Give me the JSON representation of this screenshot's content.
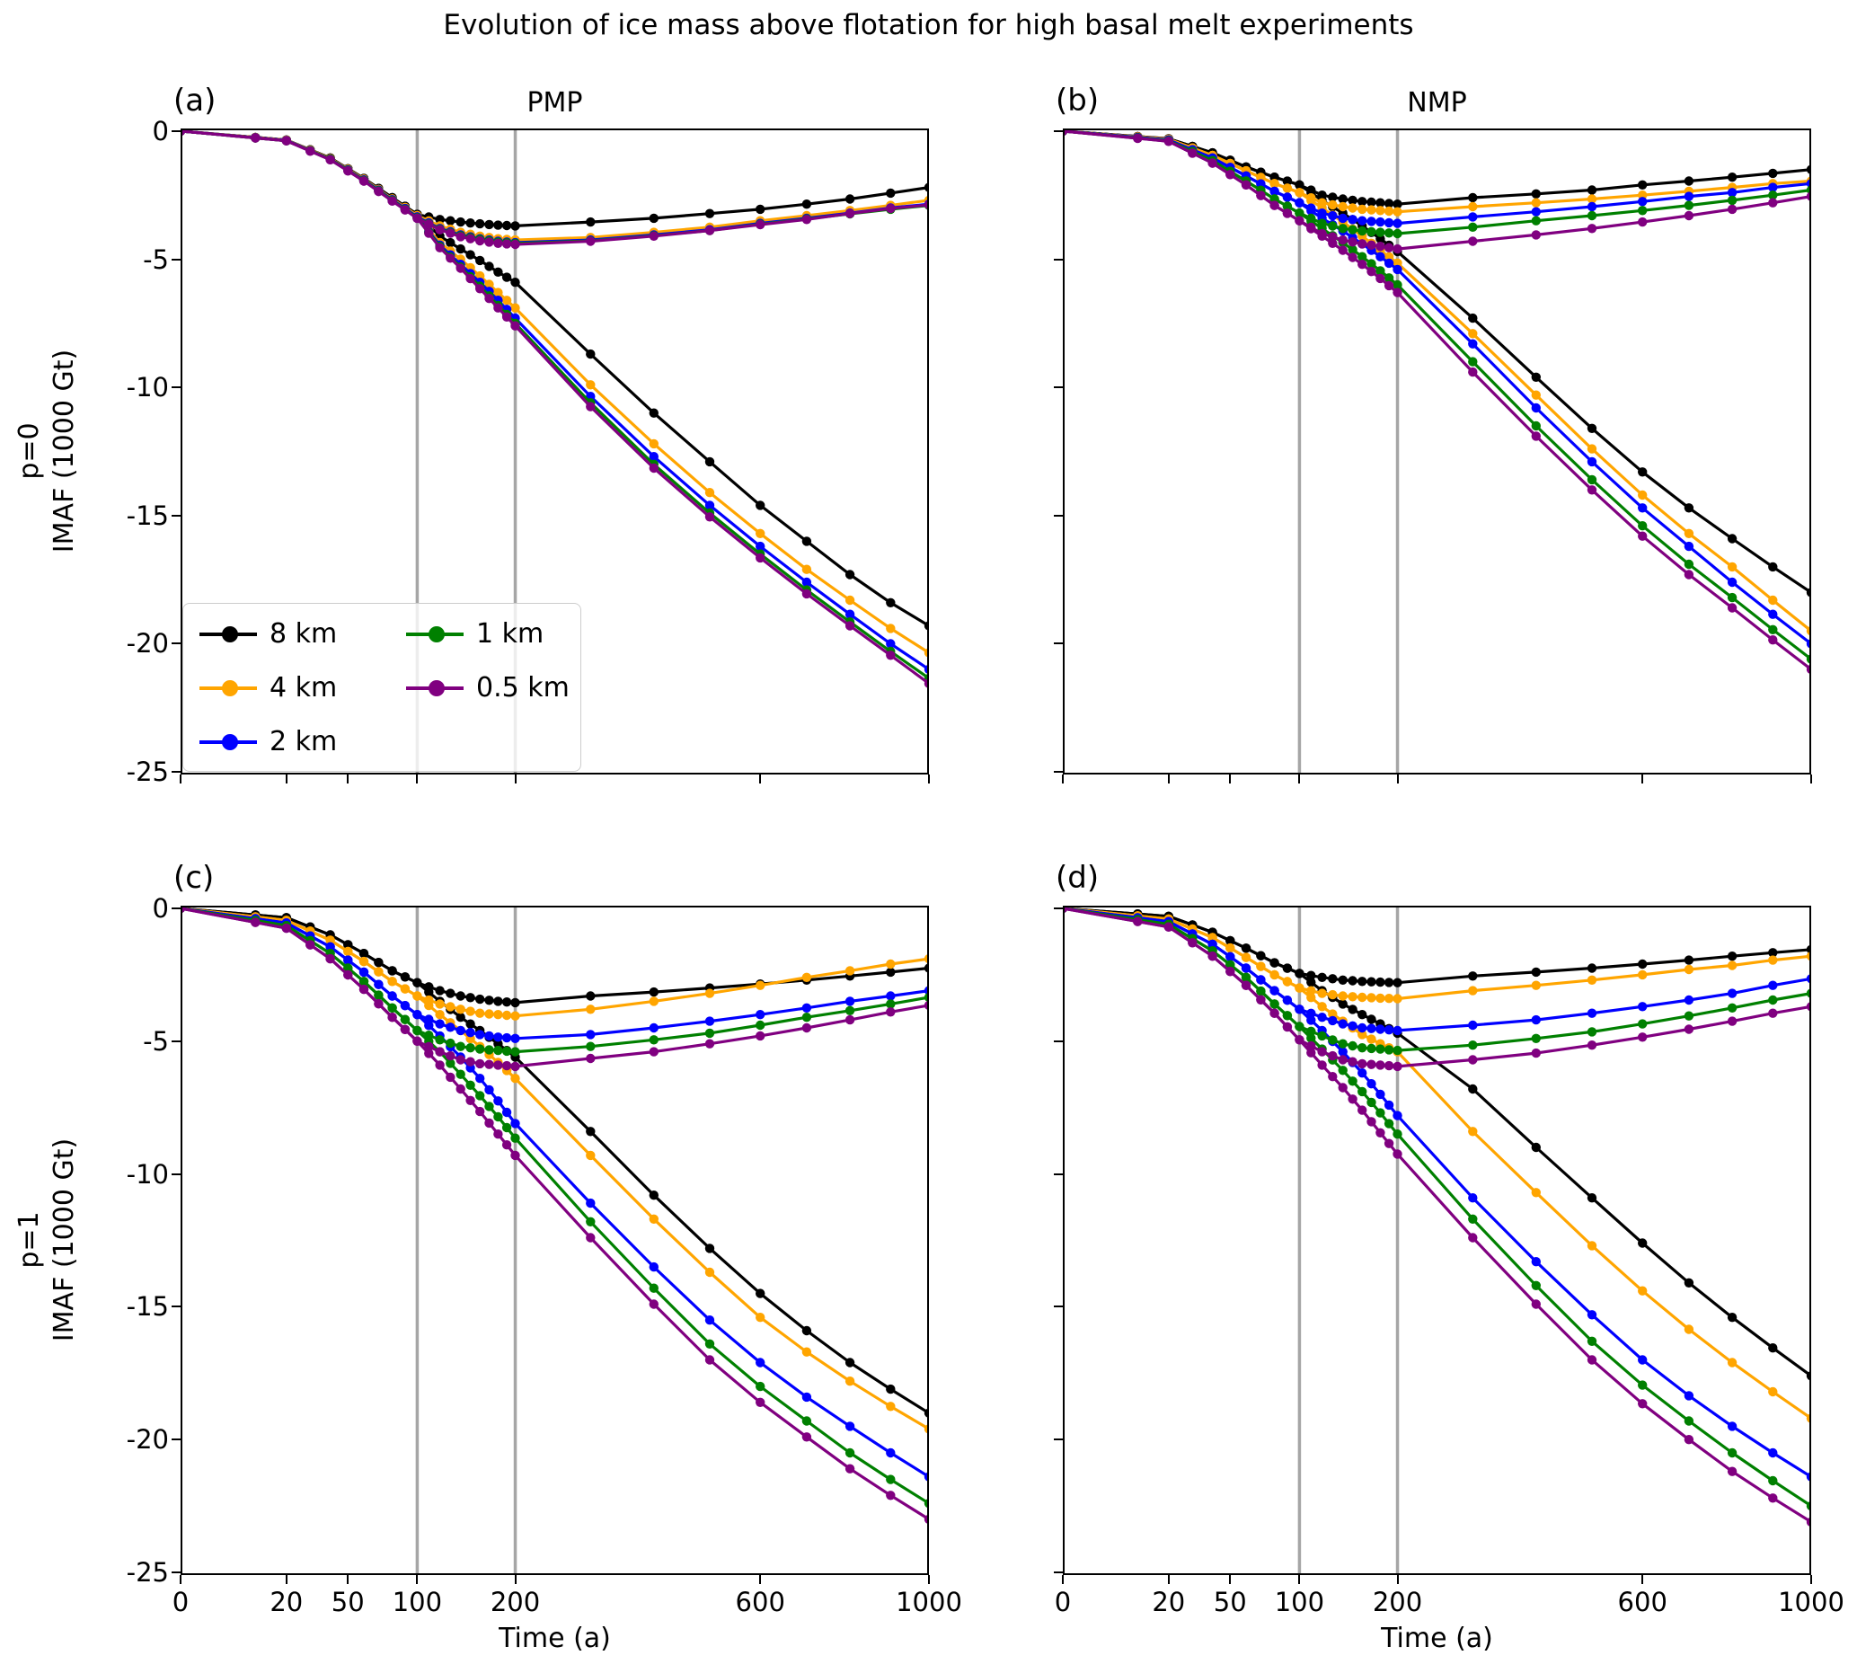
{
  "title": "Evolution of ice mass above flotation for high basal melt experiments",
  "xlabel": "Time (a)",
  "rows": [
    {
      "label": "p=0",
      "ylabel": "IMAF (1000 Gt)"
    },
    {
      "label": "p=1",
      "ylabel": "IMAF (1000 Gt)"
    }
  ],
  "legend": {
    "items": [
      {
        "label": "8 km",
        "color": "#000000"
      },
      {
        "label": "4 km",
        "color": "#FFA500"
      },
      {
        "label": "2 km",
        "color": "#0000FF"
      },
      {
        "label": "1 km",
        "color": "#008000"
      },
      {
        "label": "0.5 km",
        "color": "#800080"
      }
    ]
  },
  "axes": {
    "x_scale": "sqrt",
    "x_ticks": [
      0,
      20,
      50,
      100,
      200,
      600,
      1000
    ],
    "y_ticks": [
      0,
      -5,
      -10,
      -15,
      -20,
      -25
    ],
    "xlim": [
      0,
      1000
    ],
    "ylim": [
      0.1,
      -25.1
    ],
    "vlines": [
      100,
      200
    ],
    "vline_color": "#a6a6a6",
    "anchor_times_early": [
      0,
      20,
      40,
      60,
      80,
      100
    ],
    "anchor_times_branch": [
      120,
      140,
      160,
      180,
      200,
      300,
      400,
      500,
      600,
      700,
      800,
      900,
      1000
    ],
    "marker_times_dense_step": 10,
    "marker_times_sparse_step": 100
  },
  "chart_data": [
    {
      "id": "a",
      "label": "(a)",
      "title": "PMP",
      "row": "p=0",
      "type": "line",
      "series": [
        {
          "name": "8 km",
          "color": "#000000",
          "early": [
            0,
            -0.35,
            -1.05,
            -1.85,
            -2.6,
            -3.25
          ],
          "recover": [
            -3.45,
            -3.55,
            -3.62,
            -3.67,
            -3.7,
            -3.55,
            -3.4,
            -3.22,
            -3.05,
            -2.85,
            -2.65,
            -2.42,
            -2.2
          ],
          "decline": [
            -4.1,
            -4.6,
            -5.05,
            -5.5,
            -5.9,
            -8.7,
            -11.0,
            -12.9,
            -14.6,
            -16.0,
            -17.3,
            -18.4,
            -19.3
          ]
        },
        {
          "name": "4 km",
          "color": "#FFA500",
          "early": [
            0,
            -0.36,
            -1.07,
            -1.88,
            -2.65,
            -3.3
          ],
          "recover": [
            -3.7,
            -3.95,
            -4.1,
            -4.2,
            -4.25,
            -4.15,
            -3.95,
            -3.75,
            -3.5,
            -3.3,
            -3.1,
            -2.9,
            -2.7
          ],
          "decline": [
            -4.35,
            -5.0,
            -5.65,
            -6.3,
            -6.9,
            -9.9,
            -12.2,
            -14.1,
            -15.7,
            -17.1,
            -18.3,
            -19.4,
            -20.35
          ]
        },
        {
          "name": "2 km",
          "color": "#0000FF",
          "early": [
            0,
            -0.37,
            -1.09,
            -1.91,
            -2.68,
            -3.35
          ],
          "recover": [
            -3.8,
            -4.05,
            -4.2,
            -4.3,
            -4.35,
            -4.25,
            -4.05,
            -3.85,
            -3.6,
            -3.4,
            -3.2,
            -3.0,
            -2.85
          ],
          "decline": [
            -4.45,
            -5.2,
            -5.9,
            -6.6,
            -7.3,
            -10.35,
            -12.7,
            -14.6,
            -16.2,
            -17.6,
            -18.85,
            -20.0,
            -21.0
          ]
        },
        {
          "name": "1 km",
          "color": "#008000",
          "early": [
            0,
            -0.38,
            -1.1,
            -1.93,
            -2.7,
            -3.38
          ],
          "recover": [
            -3.83,
            -4.08,
            -4.23,
            -4.33,
            -4.38,
            -4.28,
            -4.08,
            -3.88,
            -3.63,
            -3.43,
            -3.23,
            -3.05,
            -2.9
          ],
          "decline": [
            -4.5,
            -5.3,
            -6.05,
            -6.8,
            -7.5,
            -10.6,
            -13.0,
            -14.9,
            -16.5,
            -17.9,
            -19.15,
            -20.3,
            -21.35
          ]
        },
        {
          "name": "0.5 km",
          "color": "#800080",
          "early": [
            0,
            -0.38,
            -1.12,
            -1.95,
            -2.73,
            -3.4
          ],
          "recover": [
            -3.85,
            -4.12,
            -4.28,
            -4.38,
            -4.42,
            -4.3,
            -4.1,
            -3.88,
            -3.65,
            -3.45,
            -3.22,
            -3.02,
            -2.88
          ],
          "decline": [
            -4.55,
            -5.35,
            -6.15,
            -6.9,
            -7.6,
            -10.75,
            -13.15,
            -15.05,
            -16.65,
            -18.05,
            -19.3,
            -20.45,
            -21.55
          ]
        }
      ]
    },
    {
      "id": "b",
      "label": "(b)",
      "title": "NMP",
      "row": "p=0",
      "type": "line",
      "series": [
        {
          "name": "8 km",
          "color": "#000000",
          "early": [
            0,
            -0.3,
            -0.85,
            -1.4,
            -1.8,
            -2.1
          ],
          "recover": [
            -2.5,
            -2.65,
            -2.75,
            -2.8,
            -2.85,
            -2.6,
            -2.45,
            -2.3,
            -2.1,
            -1.95,
            -1.8,
            -1.65,
            -1.5
          ],
          "decline": [
            -2.7,
            -3.2,
            -3.7,
            -4.2,
            -4.7,
            -7.3,
            -9.6,
            -11.6,
            -13.3,
            -14.7,
            -15.9,
            -17.0,
            -18.0
          ]
        },
        {
          "name": "4 km",
          "color": "#FFA500",
          "early": [
            0,
            -0.32,
            -0.95,
            -1.55,
            -2.05,
            -2.4
          ],
          "recover": [
            -2.8,
            -2.95,
            -3.05,
            -3.1,
            -3.15,
            -2.95,
            -2.8,
            -2.65,
            -2.5,
            -2.35,
            -2.2,
            -2.05,
            -1.95
          ],
          "decline": [
            -3.0,
            -3.55,
            -4.1,
            -4.65,
            -5.15,
            -7.9,
            -10.3,
            -12.4,
            -14.2,
            -15.7,
            -17.0,
            -18.3,
            -19.5
          ]
        },
        {
          "name": "2 km",
          "color": "#0000FF",
          "early": [
            0,
            -0.35,
            -1.05,
            -1.75,
            -2.35,
            -2.8
          ],
          "recover": [
            -3.2,
            -3.4,
            -3.5,
            -3.55,
            -3.6,
            -3.35,
            -3.15,
            -2.95,
            -2.75,
            -2.55,
            -2.4,
            -2.2,
            -2.05
          ],
          "decline": [
            -3.4,
            -3.9,
            -4.4,
            -4.9,
            -5.4,
            -8.3,
            -10.8,
            -12.9,
            -14.7,
            -16.2,
            -17.6,
            -18.85,
            -20.0
          ]
        },
        {
          "name": "1 km",
          "color": "#008000",
          "early": [
            0,
            -0.38,
            -1.15,
            -1.95,
            -2.65,
            -3.2
          ],
          "recover": [
            -3.6,
            -3.8,
            -3.9,
            -3.95,
            -4.0,
            -3.75,
            -3.5,
            -3.3,
            -3.1,
            -2.9,
            -2.7,
            -2.5,
            -2.3
          ],
          "decline": [
            -3.8,
            -4.35,
            -4.9,
            -5.45,
            -6.0,
            -9.0,
            -11.5,
            -13.6,
            -15.4,
            -16.9,
            -18.2,
            -19.45,
            -20.6
          ]
        },
        {
          "name": "0.5 km",
          "color": "#800080",
          "early": [
            0,
            -0.4,
            -1.25,
            -2.1,
            -2.9,
            -3.5
          ],
          "recover": [
            -4.0,
            -4.25,
            -4.4,
            -4.5,
            -4.6,
            -4.3,
            -4.05,
            -3.8,
            -3.55,
            -3.3,
            -3.05,
            -2.8,
            -2.55
          ],
          "decline": [
            -4.1,
            -4.65,
            -5.2,
            -5.75,
            -6.3,
            -9.4,
            -11.9,
            -14.0,
            -15.8,
            -17.3,
            -18.6,
            -19.85,
            -21.0
          ]
        }
      ]
    },
    {
      "id": "c",
      "label": "(c)",
      "title": null,
      "row": "p=1",
      "type": "line",
      "series": [
        {
          "name": "8 km",
          "color": "#000000",
          "early": [
            0,
            -0.35,
            -1.0,
            -1.7,
            -2.35,
            -2.8
          ],
          "recover": [
            -3.1,
            -3.3,
            -3.42,
            -3.5,
            -3.55,
            -3.3,
            -3.15,
            -3.0,
            -2.85,
            -2.7,
            -2.55,
            -2.4,
            -2.25
          ],
          "decline": [
            -3.5,
            -4.1,
            -4.6,
            -5.1,
            -5.6,
            -8.4,
            -10.8,
            -12.8,
            -14.5,
            -15.9,
            -17.1,
            -18.1,
            -19.0
          ]
        },
        {
          "name": "4 km",
          "color": "#FFA500",
          "early": [
            0,
            -0.45,
            -1.2,
            -2.0,
            -2.75,
            -3.3
          ],
          "recover": [
            -3.6,
            -3.8,
            -3.95,
            -4.0,
            -4.05,
            -3.8,
            -3.5,
            -3.2,
            -2.9,
            -2.6,
            -2.35,
            -2.1,
            -1.9
          ],
          "decline": [
            -4.0,
            -4.6,
            -5.2,
            -5.8,
            -6.4,
            -9.3,
            -11.7,
            -13.7,
            -15.4,
            -16.7,
            -17.8,
            -18.75,
            -19.6
          ]
        },
        {
          "name": "2 km",
          "color": "#0000FF",
          "early": [
            0,
            -0.55,
            -1.45,
            -2.4,
            -3.3,
            -4.0
          ],
          "recover": [
            -4.35,
            -4.6,
            -4.75,
            -4.85,
            -4.9,
            -4.75,
            -4.5,
            -4.25,
            -4.0,
            -3.75,
            -3.5,
            -3.3,
            -3.1
          ],
          "decline": [
            -4.8,
            -5.6,
            -6.4,
            -7.25,
            -8.1,
            -11.1,
            -13.5,
            -15.5,
            -17.1,
            -18.4,
            -19.5,
            -20.5,
            -21.4
          ]
        },
        {
          "name": "1 km",
          "color": "#008000",
          "early": [
            0,
            -0.65,
            -1.7,
            -2.75,
            -3.75,
            -4.6
          ],
          "recover": [
            -4.95,
            -5.2,
            -5.3,
            -5.35,
            -5.4,
            -5.2,
            -4.95,
            -4.7,
            -4.4,
            -4.1,
            -3.85,
            -3.6,
            -3.35
          ],
          "decline": [
            -5.4,
            -6.25,
            -7.05,
            -7.85,
            -8.65,
            -11.8,
            -14.3,
            -16.4,
            -18.0,
            -19.3,
            -20.5,
            -21.5,
            -22.4
          ]
        },
        {
          "name": "0.5 km",
          "color": "#800080",
          "early": [
            0,
            -0.75,
            -1.9,
            -3.05,
            -4.1,
            -5.0
          ],
          "recover": [
            -5.4,
            -5.7,
            -5.85,
            -5.9,
            -5.95,
            -5.65,
            -5.4,
            -5.1,
            -4.8,
            -4.5,
            -4.2,
            -3.9,
            -3.65
          ],
          "decline": [
            -5.9,
            -6.8,
            -7.65,
            -8.5,
            -9.3,
            -12.4,
            -14.9,
            -17.0,
            -18.6,
            -19.9,
            -21.1,
            -22.1,
            -23.0
          ]
        }
      ]
    },
    {
      "id": "d",
      "label": "(d)",
      "title": null,
      "row": "p=1",
      "type": "line",
      "series": [
        {
          "name": "8 km",
          "color": "#000000",
          "early": [
            0,
            -0.3,
            -0.9,
            -1.5,
            -2.05,
            -2.45
          ],
          "recover": [
            -2.6,
            -2.7,
            -2.75,
            -2.78,
            -2.8,
            -2.55,
            -2.4,
            -2.25,
            -2.1,
            -1.95,
            -1.8,
            -1.67,
            -1.55
          ],
          "decline": [
            -3.1,
            -3.6,
            -4.0,
            -4.35,
            -4.7,
            -6.8,
            -9.0,
            -10.9,
            -12.6,
            -14.1,
            -15.4,
            -16.55,
            -17.6
          ]
        },
        {
          "name": "4 km",
          "color": "#FFA500",
          "early": [
            0,
            -0.4,
            -1.1,
            -1.85,
            -2.5,
            -3.0
          ],
          "recover": [
            -3.2,
            -3.3,
            -3.35,
            -3.38,
            -3.4,
            -3.1,
            -2.9,
            -2.7,
            -2.5,
            -2.3,
            -2.15,
            -1.95,
            -1.8
          ],
          "decline": [
            -3.7,
            -4.25,
            -4.75,
            -5.1,
            -5.4,
            -8.4,
            -10.7,
            -12.7,
            -14.4,
            -15.85,
            -17.1,
            -18.2,
            -19.2
          ]
        },
        {
          "name": "2 km",
          "color": "#0000FF",
          "early": [
            0,
            -0.5,
            -1.35,
            -2.25,
            -3.1,
            -3.8
          ],
          "recover": [
            -4.1,
            -4.35,
            -4.5,
            -4.55,
            -4.6,
            -4.4,
            -4.2,
            -3.95,
            -3.7,
            -3.45,
            -3.2,
            -2.9,
            -2.65
          ],
          "decline": [
            -4.6,
            -5.4,
            -6.2,
            -7.0,
            -7.8,
            -10.9,
            -13.3,
            -15.3,
            -17.0,
            -18.35,
            -19.5,
            -20.5,
            -21.4
          ]
        },
        {
          "name": "1 km",
          "color": "#008000",
          "early": [
            0,
            -0.6,
            -1.6,
            -2.6,
            -3.6,
            -4.45
          ],
          "recover": [
            -4.8,
            -5.1,
            -5.25,
            -5.3,
            -5.35,
            -5.15,
            -4.9,
            -4.65,
            -4.35,
            -4.05,
            -3.75,
            -3.45,
            -3.2
          ],
          "decline": [
            -5.3,
            -6.1,
            -6.9,
            -7.7,
            -8.5,
            -11.7,
            -14.2,
            -16.3,
            -17.95,
            -19.3,
            -20.5,
            -21.55,
            -22.5
          ]
        },
        {
          "name": "0.5 km",
          "color": "#800080",
          "early": [
            0,
            -0.7,
            -1.8,
            -2.9,
            -3.95,
            -4.95
          ],
          "recover": [
            -5.4,
            -5.7,
            -5.85,
            -5.9,
            -5.95,
            -5.7,
            -5.45,
            -5.15,
            -4.85,
            -4.55,
            -4.25,
            -3.95,
            -3.7
          ],
          "decline": [
            -5.9,
            -6.75,
            -7.6,
            -8.45,
            -9.25,
            -12.4,
            -14.9,
            -17.0,
            -18.65,
            -20.0,
            -21.2,
            -22.2,
            -23.1
          ]
        }
      ]
    }
  ]
}
